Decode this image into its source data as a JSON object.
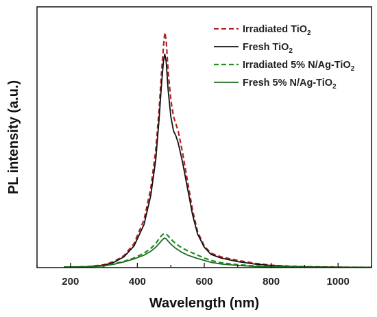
{
  "chart_data": {
    "type": "line",
    "xlabel": "Wavelength (nm)",
    "ylabel": "PL intensity (a.u.)",
    "xlim": [
      100,
      1100
    ],
    "ylim": [
      0,
      1.0
    ],
    "x_ticks": [
      "200",
      "400",
      "600",
      "800",
      "1000"
    ],
    "y_ticks_labeled": false,
    "grid": false,
    "legend_position": "top-right",
    "series": [
      {
        "name": "Irradiated TiO2",
        "name_text": "Irradiated TiO",
        "name_sub": "2",
        "color": "#b22222",
        "style": "dashed",
        "points": [
          [
            180,
            0.002
          ],
          [
            250,
            0.004
          ],
          [
            300,
            0.012
          ],
          [
            330,
            0.025
          ],
          [
            360,
            0.05
          ],
          [
            390,
            0.1
          ],
          [
            420,
            0.2
          ],
          [
            440,
            0.33
          ],
          [
            455,
            0.49
          ],
          [
            465,
            0.66
          ],
          [
            472,
            0.81
          ],
          [
            478,
            0.92
          ],
          [
            482,
            0.98
          ],
          [
            486,
            0.95
          ],
          [
            492,
            0.82
          ],
          [
            500,
            0.7
          ],
          [
            508,
            0.63
          ],
          [
            515,
            0.6
          ],
          [
            522,
            0.57
          ],
          [
            535,
            0.48
          ],
          [
            550,
            0.36
          ],
          [
            565,
            0.24
          ],
          [
            580,
            0.15
          ],
          [
            600,
            0.09
          ],
          [
            620,
            0.06
          ],
          [
            650,
            0.045
          ],
          [
            700,
            0.03
          ],
          [
            750,
            0.018
          ],
          [
            800,
            0.01
          ],
          [
            850,
            0.006
          ],
          [
            900,
            0.004
          ],
          [
            1000,
            0.002
          ],
          [
            1100,
            0.001
          ]
        ]
      },
      {
        "name": "Fresh TiO2",
        "name_text": "Fresh TiO",
        "name_sub": "2",
        "color": "#111111",
        "style": "solid",
        "points": [
          [
            180,
            0.002
          ],
          [
            250,
            0.004
          ],
          [
            300,
            0.01
          ],
          [
            330,
            0.022
          ],
          [
            360,
            0.045
          ],
          [
            390,
            0.09
          ],
          [
            420,
            0.18
          ],
          [
            440,
            0.3
          ],
          [
            455,
            0.45
          ],
          [
            465,
            0.62
          ],
          [
            472,
            0.76
          ],
          [
            478,
            0.86
          ],
          [
            482,
            0.89
          ],
          [
            486,
            0.86
          ],
          [
            492,
            0.74
          ],
          [
            500,
            0.63
          ],
          [
            508,
            0.57
          ],
          [
            515,
            0.55
          ],
          [
            522,
            0.52
          ],
          [
            535,
            0.44
          ],
          [
            550,
            0.33
          ],
          [
            565,
            0.22
          ],
          [
            580,
            0.14
          ],
          [
            600,
            0.085
          ],
          [
            620,
            0.055
          ],
          [
            650,
            0.04
          ],
          [
            700,
            0.025
          ],
          [
            750,
            0.015
          ],
          [
            800,
            0.009
          ],
          [
            850,
            0.005
          ],
          [
            900,
            0.003
          ],
          [
            1000,
            0.002
          ],
          [
            1100,
            0.001
          ]
        ]
      },
      {
        "name": "Irradiated 5% N/Ag-TiO2",
        "name_text": "Irradiated 5% N/Ag-TiO",
        "name_sub": "2",
        "color": "#1f8a1f",
        "style": "dashed",
        "points": [
          [
            180,
            0.002
          ],
          [
            250,
            0.003
          ],
          [
            300,
            0.008
          ],
          [
            330,
            0.016
          ],
          [
            360,
            0.026
          ],
          [
            390,
            0.04
          ],
          [
            420,
            0.06
          ],
          [
            440,
            0.08
          ],
          [
            455,
            0.1
          ],
          [
            465,
            0.12
          ],
          [
            472,
            0.133
          ],
          [
            478,
            0.14
          ],
          [
            482,
            0.142
          ],
          [
            486,
            0.14
          ],
          [
            492,
            0.132
          ],
          [
            500,
            0.12
          ],
          [
            508,
            0.108
          ],
          [
            515,
            0.1
          ],
          [
            530,
            0.085
          ],
          [
            550,
            0.07
          ],
          [
            575,
            0.055
          ],
          [
            600,
            0.04
          ],
          [
            620,
            0.03
          ],
          [
            650,
            0.02
          ],
          [
            700,
            0.012
          ],
          [
            750,
            0.007
          ],
          [
            800,
            0.004
          ],
          [
            900,
            0.002
          ],
          [
            1000,
            0.001
          ],
          [
            1100,
            0.001
          ]
        ]
      },
      {
        "name": "Fresh 5% N/Ag-TiO2",
        "name_text": "Fresh 5% N/Ag-TiO",
        "name_sub": "2",
        "color": "#1e6b1e",
        "style": "solid",
        "points": [
          [
            180,
            0.002
          ],
          [
            250,
            0.003
          ],
          [
            300,
            0.007
          ],
          [
            330,
            0.014
          ],
          [
            360,
            0.024
          ],
          [
            390,
            0.036
          ],
          [
            420,
            0.052
          ],
          [
            440,
            0.068
          ],
          [
            455,
            0.085
          ],
          [
            465,
            0.1
          ],
          [
            472,
            0.112
          ],
          [
            478,
            0.12
          ],
          [
            482,
            0.123
          ],
          [
            486,
            0.12
          ],
          [
            492,
            0.11
          ],
          [
            500,
            0.098
          ],
          [
            508,
            0.088
          ],
          [
            515,
            0.08
          ],
          [
            530,
            0.066
          ],
          [
            550,
            0.052
          ],
          [
            575,
            0.04
          ],
          [
            600,
            0.03
          ],
          [
            620,
            0.022
          ],
          [
            650,
            0.015
          ],
          [
            700,
            0.009
          ],
          [
            750,
            0.005
          ],
          [
            800,
            0.003
          ],
          [
            900,
            0.002
          ],
          [
            1000,
            0.001
          ],
          [
            1100,
            0.001
          ]
        ]
      }
    ]
  }
}
